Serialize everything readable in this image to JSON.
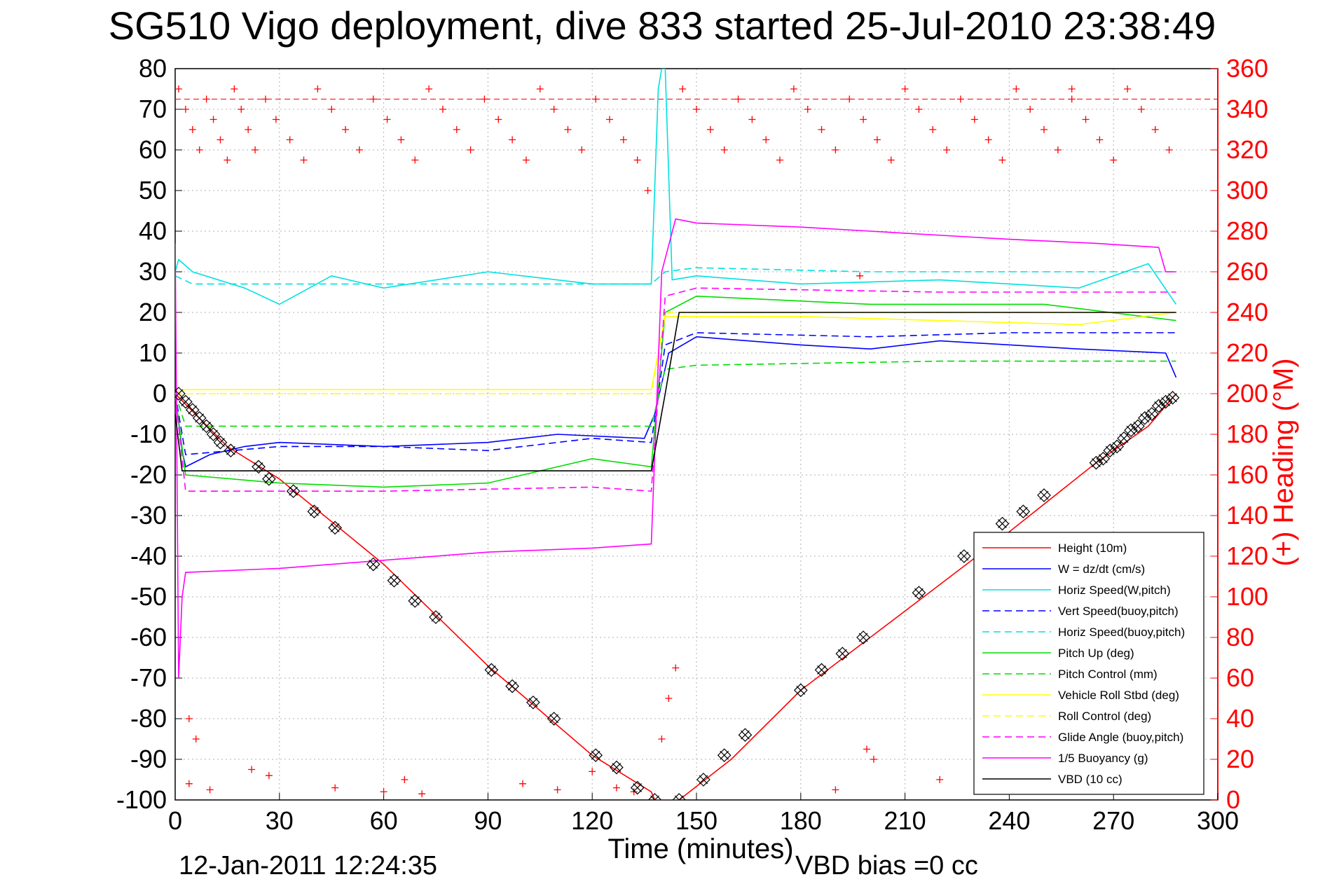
{
  "chart_data": {
    "type": "line",
    "title": "SG510 Vigo deployment, dive 833 started 25-Jul-2010 23:38:49",
    "xlabel": "Time (minutes)",
    "ylabel": "",
    "y2label": "(+) Heading (°M)",
    "xlim": [
      0,
      300
    ],
    "ylim": [
      -100,
      80
    ],
    "y2lim": [
      0,
      360
    ],
    "grid": true,
    "legend_position": "bottom-right",
    "footer_left": "12-Jan-2011 12:24:35",
    "footer_right": "VBD bias =0 cc",
    "x_ticks": [
      "0",
      "30",
      "60",
      "90",
      "120",
      "150",
      "180",
      "210",
      "240",
      "270",
      "300"
    ],
    "y_ticks": [
      "80",
      "70",
      "60",
      "50",
      "40",
      "30",
      "20",
      "10",
      "0",
      "-10",
      "-20",
      "-30",
      "-40",
      "-50",
      "-60",
      "-70",
      "-80",
      "-90",
      "-100"
    ],
    "y2_ticks": [
      "360",
      "340",
      "320",
      "300",
      "280",
      "260",
      "240",
      "220",
      "200",
      "180",
      "160",
      "140",
      "120",
      "100",
      "80",
      "60",
      "40",
      "20",
      "0"
    ],
    "series": [
      {
        "name": "Height (10m)",
        "color": "#ff0000",
        "style": "solid",
        "x": [
          0,
          15,
          30,
          60,
          90,
          120,
          137,
          138,
          145,
          160,
          180,
          200,
          220,
          240,
          265,
          280,
          288
        ],
        "y": [
          0,
          -13,
          -21,
          -42,
          -67,
          -89,
          -98,
          -100,
          -100,
          -90,
          -73,
          -60,
          -47,
          -34,
          -17,
          -8,
          0
        ]
      },
      {
        "name": "W = dz/dt (cm/s)",
        "color": "#0000ff",
        "style": "solid",
        "x": [
          0,
          2,
          3,
          10,
          20,
          30,
          60,
          90,
          110,
          135,
          138,
          142,
          150,
          180,
          200,
          220,
          260,
          285,
          288
        ],
        "y": [
          0,
          -14,
          -18,
          -15,
          -13,
          -12,
          -13,
          -12,
          -10,
          -11,
          -5,
          10,
          14,
          12,
          11,
          13,
          11,
          10,
          4
        ]
      },
      {
        "name": "Horiz Speed(W,pitch)",
        "color": "#00e0e0",
        "style": "solid",
        "x": [
          0,
          1,
          5,
          20,
          30,
          45,
          60,
          90,
          120,
          137,
          139,
          140,
          141,
          143,
          150,
          180,
          220,
          260,
          280,
          288
        ],
        "y": [
          30,
          33,
          30,
          26,
          22,
          29,
          26,
          30,
          27,
          27,
          75,
          80,
          80,
          28,
          29,
          27,
          28,
          26,
          32,
          22
        ]
      },
      {
        "name": "Vert Speed(buoy,pitch)",
        "color": "#0000ff",
        "style": "dashed",
        "x": [
          0,
          3,
          30,
          60,
          90,
          120,
          137,
          141,
          150,
          200,
          240,
          288
        ],
        "y": [
          0,
          -15,
          -13,
          -13,
          -14,
          -11,
          -12,
          12,
          15,
          14,
          15,
          15
        ]
      },
      {
        "name": "Horiz Speed(buoy,pitch)",
        "color": "#00e0e0",
        "style": "dashed",
        "x": [
          0,
          5,
          60,
          120,
          137,
          141,
          150,
          200,
          288
        ],
        "y": [
          29,
          27,
          27,
          27,
          27,
          30,
          31,
          30,
          30
        ]
      },
      {
        "name": "Pitch Up (deg)",
        "color": "#00dd00",
        "style": "solid",
        "x": [
          0,
          3,
          30,
          60,
          90,
          110,
          120,
          137,
          141,
          150,
          200,
          250,
          288
        ],
        "y": [
          0,
          -20,
          -22,
          -23,
          -22,
          -18,
          -16,
          -18,
          20,
          24,
          22,
          22,
          18
        ]
      },
      {
        "name": "Pitch Control (mm)",
        "color": "#00dd00",
        "style": "dashed",
        "x": [
          0,
          3,
          60,
          137,
          141,
          150,
          220,
          288
        ],
        "y": [
          0,
          -8,
          -8,
          -8,
          6,
          7,
          8,
          8
        ]
      },
      {
        "name": "Vehicle Roll Stbd (deg)",
        "color": "#ffff00",
        "style": "solid",
        "x": [
          0,
          3,
          30,
          60,
          90,
          120,
          137,
          141,
          150,
          180,
          220,
          260,
          288
        ],
        "y": [
          0,
          1,
          1,
          1,
          1,
          1,
          1,
          19,
          19,
          19,
          18,
          17,
          20
        ]
      },
      {
        "name": "Roll Control (deg)",
        "color": "#ffff00",
        "style": "dashed",
        "x": [
          0,
          3,
          60,
          137,
          141,
          200,
          288
        ],
        "y": [
          0,
          0,
          0,
          0,
          20,
          20,
          20
        ]
      },
      {
        "name": "Glide Angle (buoy,pitch)",
        "color": "#ff00ff",
        "style": "dashed",
        "x": [
          0,
          3,
          60,
          120,
          137,
          141,
          150,
          220,
          288
        ],
        "y": [
          0,
          -24,
          -24,
          -23,
          -24,
          24,
          26,
          25,
          25
        ]
      },
      {
        "name": "1/5 Buoyancy (g)",
        "color": "#ff00ff",
        "style": "solid",
        "x": [
          0,
          1,
          2,
          3,
          30,
          60,
          90,
          120,
          137,
          140,
          144,
          150,
          180,
          200,
          240,
          265,
          283,
          285,
          288
        ],
        "y": [
          37,
          -70,
          -50,
          -44,
          -43,
          -41,
          -39,
          -38,
          -37,
          30,
          43,
          42,
          41,
          40,
          38,
          37,
          36,
          30,
          30
        ]
      },
      {
        "name": "VBD (10 cc)",
        "color": "#000000",
        "style": "solid",
        "x": [
          0,
          2,
          3,
          137,
          141,
          145,
          288
        ],
        "y": [
          -5,
          -19,
          -19,
          -19,
          0,
          20,
          20
        ]
      }
    ],
    "heading_points": {
      "name": "Heading",
      "color": "#ff0000",
      "marker": "+",
      "x": [
        1,
        3,
        5,
        7,
        9,
        11,
        13,
        15,
        17,
        19,
        21,
        23,
        26,
        29,
        33,
        37,
        41,
        45,
        49,
        53,
        57,
        61,
        65,
        69,
        73,
        77,
        81,
        85,
        89,
        93,
        97,
        101,
        105,
        109,
        113,
        117,
        121,
        125,
        129,
        133,
        136,
        146,
        150,
        154,
        158,
        162,
        166,
        170,
        174,
        178,
        182,
        186,
        190,
        194,
        198,
        202,
        206,
        210,
        214,
        218,
        222,
        226,
        230,
        234,
        238,
        242,
        246,
        250,
        254,
        258,
        262,
        266,
        270,
        274,
        278,
        282,
        286,
        4,
        10,
        22,
        27,
        46,
        60,
        66,
        71,
        100,
        110,
        120,
        127,
        132,
        140,
        142,
        144,
        190,
        201,
        220,
        4,
        6,
        199,
        197,
        258
      ],
      "y": [
        350,
        340,
        330,
        320,
        345,
        335,
        325,
        315,
        350,
        340,
        330,
        320,
        345,
        335,
        325,
        315,
        350,
        340,
        330,
        320,
        345,
        335,
        325,
        315,
        350,
        340,
        330,
        320,
        345,
        335,
        325,
        315,
        350,
        340,
        330,
        320,
        345,
        335,
        325,
        315,
        300,
        350,
        340,
        330,
        320,
        345,
        335,
        325,
        315,
        350,
        340,
        330,
        320,
        345,
        335,
        325,
        315,
        350,
        340,
        330,
        320,
        345,
        335,
        325,
        315,
        350,
        340,
        330,
        320,
        345,
        335,
        325,
        315,
        350,
        340,
        330,
        320,
        8,
        5,
        15,
        12,
        6,
        4,
        10,
        3,
        8,
        5,
        14,
        6,
        4,
        30,
        50,
        65,
        5,
        20,
        10,
        40,
        30,
        25,
        258,
        350
      ]
    },
    "dive_markers": {
      "x": [
        1,
        3,
        5,
        7,
        9,
        11,
        13,
        16,
        24,
        27,
        34,
        40,
        46,
        57,
        63,
        69,
        75,
        91,
        97,
        103,
        109,
        121,
        127,
        133,
        138,
        145,
        152,
        158,
        164,
        180,
        186,
        192,
        198,
        214,
        227,
        238,
        244,
        250,
        265,
        267,
        269,
        271,
        273,
        275,
        277,
        279,
        281,
        283,
        285,
        287
      ],
      "y": [
        0,
        -2,
        -4,
        -6,
        -8,
        -10,
        -12,
        -14,
        -18,
        -21,
        -24,
        -29,
        -33,
        -42,
        -46,
        -51,
        -55,
        -68,
        -72,
        -76,
        -80,
        -89,
        -92,
        -97,
        -100,
        -100,
        -95,
        -89,
        -84,
        -73,
        -68,
        -64,
        -60,
        -49,
        -40,
        -32,
        -29,
        -25,
        -17,
        -16,
        -14,
        -13,
        -11,
        -9,
        -8,
        -6,
        -5,
        -3,
        -2,
        -1
      ]
    }
  }
}
